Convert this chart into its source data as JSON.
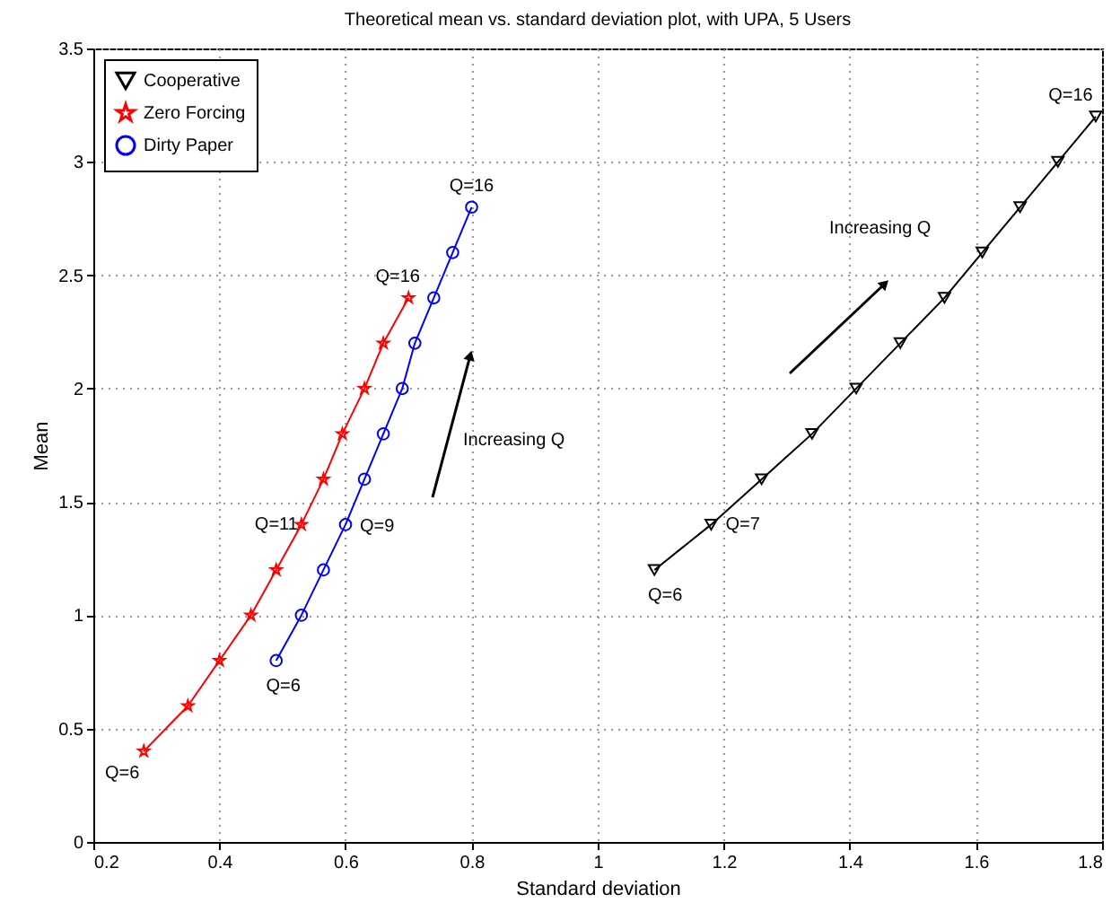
{
  "chart_data": {
    "type": "line",
    "title": "Theoretical mean vs. standard deviation plot, with UPA, 5 Users",
    "xlabel": "Standard deviation",
    "ylabel": "Mean",
    "xlim": [
      0.2,
      1.8
    ],
    "xticks": [
      0.2,
      0.4,
      0.6,
      0.8,
      1,
      1.2,
      1.4,
      1.6,
      1.8
    ],
    "ylim": [
      0,
      3.5
    ],
    "yticks": [
      0,
      0.5,
      1,
      1.5,
      2,
      2.5,
      3,
      3.5
    ],
    "grid": true,
    "legend": "top left",
    "line_style": "solid",
    "series": [
      {
        "name": "Cooperative",
        "color": "#000000",
        "marker": "triangle",
        "x": [
          1.09,
          1.18,
          1.26,
          1.34,
          1.41,
          1.48,
          1.55,
          1.61,
          1.67,
          1.73,
          1.79
        ],
        "values": [
          1.2,
          1.4,
          1.6,
          1.8,
          2.0,
          2.2,
          2.4,
          2.6,
          2.8,
          3.0,
          3.2
        ]
      },
      {
        "name": "Zero Forcing",
        "color": "#ff0000",
        "marker": "star",
        "x": [
          0.28,
          0.35,
          0.4,
          0.45,
          0.49,
          0.53,
          0.565,
          0.595,
          0.63,
          0.66,
          0.7
        ],
        "values": [
          0.4,
          0.6,
          0.8,
          1.0,
          1.2,
          1.4,
          1.6,
          1.8,
          2.0,
          2.2,
          2.4
        ]
      },
      {
        "name": "Dirty Paper",
        "color": "#0000ff",
        "marker": "circle",
        "x": [
          0.49,
          0.53,
          0.565,
          0.6,
          0.63,
          0.66,
          0.69,
          0.71,
          0.74,
          0.77,
          0.8
        ],
        "values": [
          0.8,
          1.0,
          1.2,
          1.4,
          1.6,
          1.8,
          2.0,
          2.2,
          2.4,
          2.6,
          2.8
        ]
      }
    ],
    "annotations": [
      {
        "text": "Q=6",
        "x": 1.09,
        "y": 1.2
      },
      {
        "text": "Q=7",
        "x": 1.18,
        "y": 1.4
      },
      {
        "text": "Q=16",
        "x": 1.79,
        "y": 3.2
      },
      {
        "text": "Q=6",
        "x": 0.28,
        "y": 0.4
      },
      {
        "text": "Q=11",
        "x": 0.53,
        "y": 1.4
      },
      {
        "text": "Q=16",
        "x": 0.7,
        "y": 2.4
      },
      {
        "text": "Q=6",
        "x": 0.49,
        "y": 0.8
      },
      {
        "text": "Q=9",
        "x": 0.6,
        "y": 1.4
      },
      {
        "text": "Q=16",
        "x": 0.8,
        "y": 2.8
      },
      "Increasing Q",
      "Increasing Q"
    ]
  }
}
